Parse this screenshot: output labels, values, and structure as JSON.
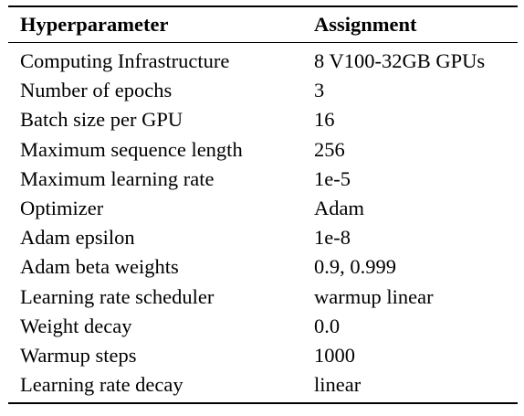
{
  "table": {
    "headers": [
      "Hyperparameter",
      "Assignment"
    ],
    "rows": [
      [
        "Computing Infrastructure",
        "8 V100-32GB GPUs"
      ],
      [
        "Number of epochs",
        "3"
      ],
      [
        "Batch size per GPU",
        "16"
      ],
      [
        "Maximum sequence length",
        "256"
      ],
      [
        "Maximum learning rate",
        "1e-5"
      ],
      [
        "Optimizer",
        "Adam"
      ],
      [
        "Adam epsilon",
        "1e-8"
      ],
      [
        "Adam beta weights",
        "0.9, 0.999"
      ],
      [
        "Learning rate scheduler",
        "warmup linear"
      ],
      [
        "Weight decay",
        "0.0"
      ],
      [
        "Warmup steps",
        "1000"
      ],
      [
        "Learning rate decay",
        "linear"
      ]
    ]
  }
}
